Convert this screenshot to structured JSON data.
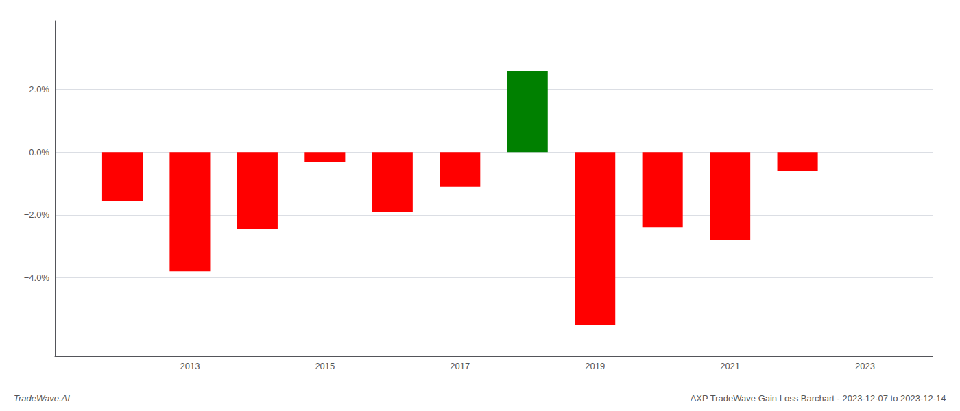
{
  "chart_data": {
    "type": "bar",
    "x": [
      2012,
      2013,
      2014,
      2015,
      2016,
      2017,
      2018,
      2019,
      2020,
      2021,
      2022
    ],
    "values": [
      -0.0155,
      -0.038,
      -0.0245,
      -0.003,
      -0.019,
      -0.011,
      0.026,
      -0.055,
      -0.024,
      -0.028,
      -0.006
    ],
    "colors": [
      "red",
      "red",
      "red",
      "red",
      "red",
      "red",
      "green",
      "red",
      "red",
      "red",
      "red"
    ],
    "xlim": [
      2011.0,
      2024.0
    ],
    "xticks": [
      2013,
      2015,
      2017,
      2019,
      2021,
      2023
    ],
    "ylim": [
      -0.065,
      0.042
    ],
    "yticks": [
      {
        "value": -0.04,
        "label": "−4.0%"
      },
      {
        "value": -0.02,
        "label": "−2.0%"
      },
      {
        "value": 0.0,
        "label": "0.0%"
      },
      {
        "value": 0.02,
        "label": "2.0%"
      }
    ],
    "grid": true,
    "annotations": [
      "TradeWave.AI",
      "AXP TradeWave Gain Loss Barchart - 2023-12-07 to 2023-12-14"
    ]
  }
}
